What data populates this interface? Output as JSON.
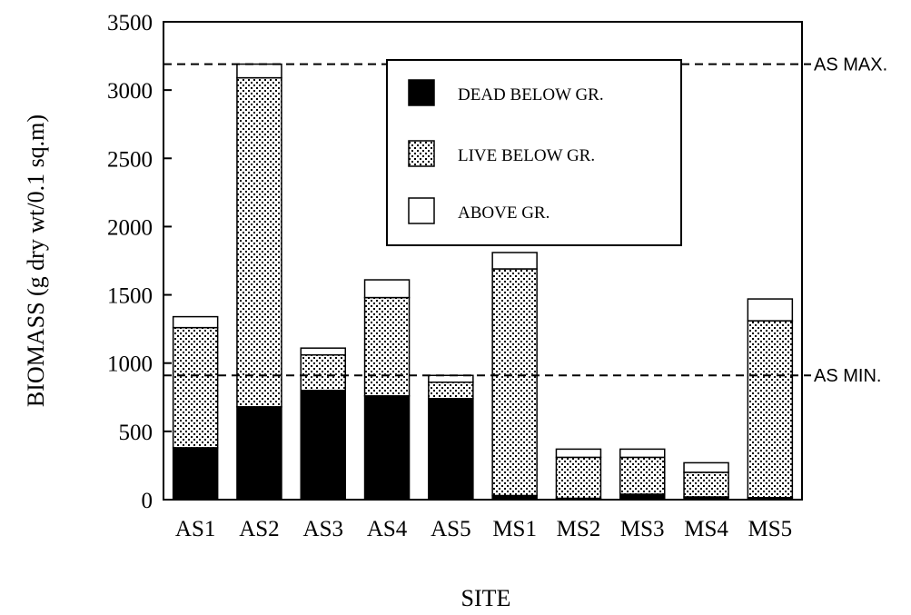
{
  "chart_data": {
    "type": "bar",
    "stacked": true,
    "title": "",
    "xlabel": "SITE",
    "ylabel": "BIOMASS (g dry wt/0.1 sq.m)",
    "ylim": [
      0,
      3500
    ],
    "yticks": [
      0,
      500,
      1000,
      1500,
      2000,
      2500,
      3000,
      3500
    ],
    "categories": [
      "AS1",
      "AS2",
      "AS3",
      "AS4",
      "AS5",
      "MS1",
      "MS2",
      "MS3",
      "MS4",
      "MS5"
    ],
    "series": [
      {
        "name": "DEAD BELOW GR.",
        "pattern": "solid",
        "color": "#000000",
        "values": [
          380,
          680,
          800,
          760,
          740,
          30,
          10,
          40,
          20,
          15
        ]
      },
      {
        "name": "LIVE BELOW GR.",
        "pattern": "dotted",
        "color": "#ffffff",
        "values": [
          880,
          2410,
          260,
          720,
          120,
          1660,
          300,
          270,
          180,
          1295
        ]
      },
      {
        "name": "ABOVE GR.",
        "pattern": "open",
        "color": "#ffffff",
        "values": [
          80,
          100,
          50,
          130,
          50,
          120,
          60,
          60,
          70,
          160
        ]
      }
    ],
    "reference_lines": [
      {
        "label": "AS MAX.",
        "value": 3190
      },
      {
        "label": "AS MIN.",
        "value": 910
      }
    ],
    "legend_position": "top-center",
    "grid": false
  }
}
